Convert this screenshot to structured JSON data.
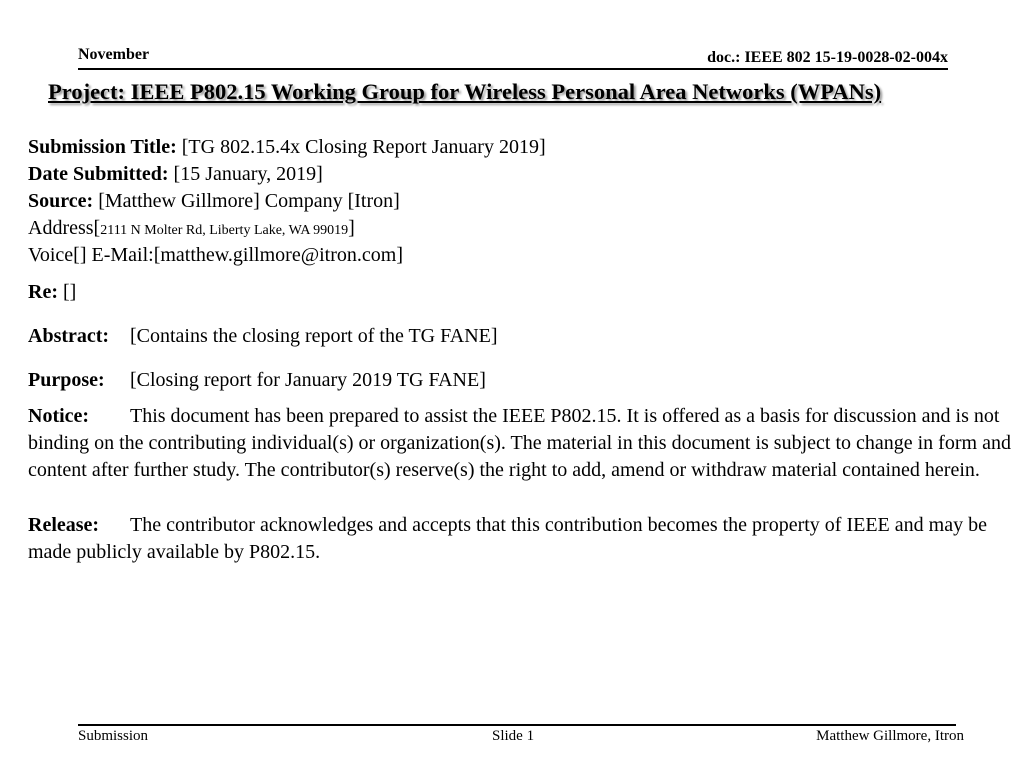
{
  "header": {
    "date": "November",
    "doc_id": "doc.: IEEE 802 15-19-0028-02-004x",
    "project_title": "Project: IEEE P802.15 Working Group for Wireless Personal Area Networks (WPANs)"
  },
  "fields": {
    "submission_title_label": "Submission Title:",
    "submission_title_value": "[TG 802.15.4x Closing Report January 2019]",
    "date_submitted_label": "Date Submitted:",
    "date_submitted_value": "[15 January, 2019]",
    "source_label": "Source:",
    "source_value": "[Matthew Gillmore] Company [Itron]",
    "address_label": "Address[",
    "address_value": "2111 N Molter Rd, Liberty Lake, WA 99019",
    "address_close": "]",
    "voice_email": "Voice[] E-Mail:[matthew.gillmore@itron.com]",
    "re_label": "Re:",
    "re_value": "[]",
    "abstract_label": "Abstract:",
    "abstract_value": "[Contains the closing report of the TG FANE]",
    "purpose_label": "Purpose:",
    "purpose_value": "[Closing report for January 2019 TG FANE]",
    "notice_label": "Notice:",
    "notice_text": "This document has been prepared to assist the IEEE P802.15.  It is offered as a basis for discussion and is not binding on the contributing individual(s) or organization(s). The material in this document is subject to change in form and content after further study. The contributor(s) reserve(s) the right to add, amend or withdraw material contained herein.",
    "release_label": "Release:",
    "release_text": "The contributor acknowledges and accepts that this contribution becomes the property of IEEE and may be made publicly available by P802.15."
  },
  "footer": {
    "left": "Submission",
    "center": "Slide 1",
    "right": "Matthew Gillmore, Itron"
  }
}
